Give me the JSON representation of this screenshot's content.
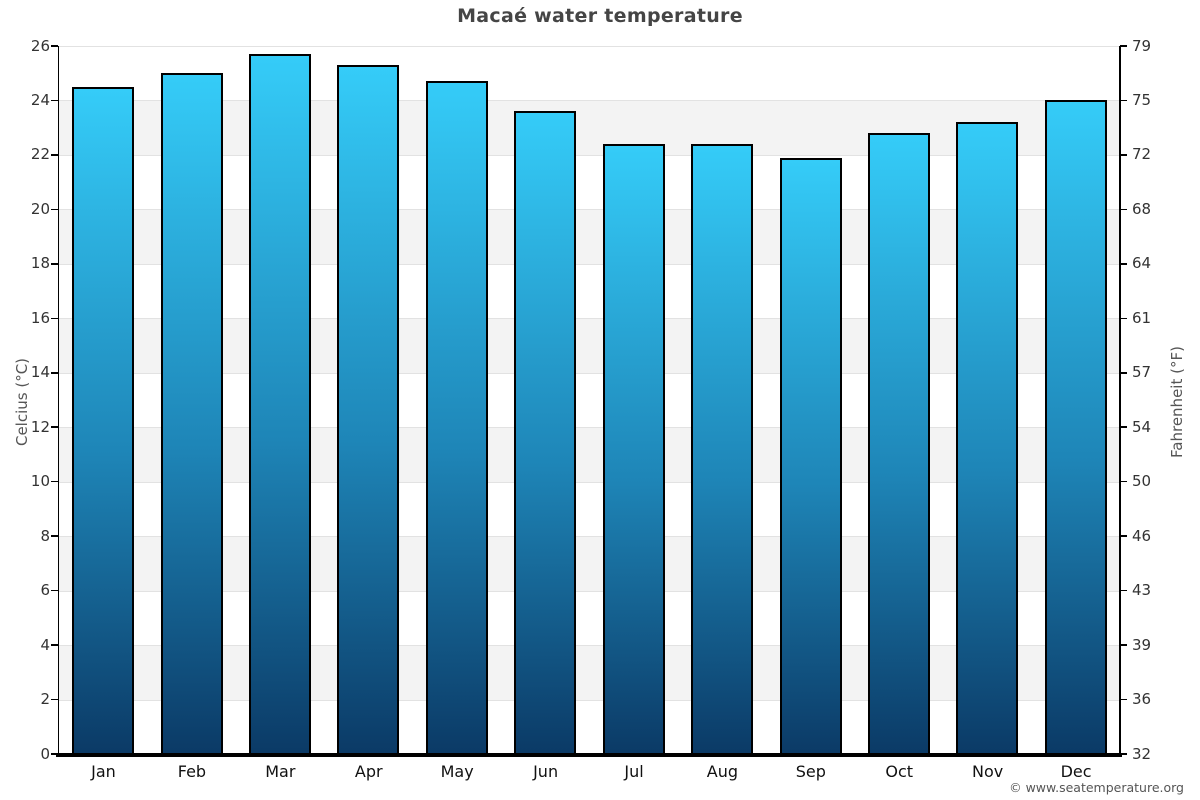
{
  "title": "Macaé water temperature",
  "axes": {
    "left_label": "Celcius (°C)",
    "right_label": "Fahrenheit (°F)"
  },
  "footer": {
    "copyright": "© www.seatemperature.org"
  },
  "colors": {
    "bar_top": "#35ccf8",
    "bar_mid": "#1e85b7",
    "bar_bottom": "#0b3a66",
    "bar_border": "#000000",
    "band_gray": "#f3f3f3",
    "band_white": "#ffffff",
    "gridline": "#e2e2e2",
    "title_text": "#454545",
    "tick_text": "#333333",
    "month_text": "#111111",
    "axis_title_text": "#555555"
  },
  "chart_data": {
    "type": "bar",
    "title": "Macaé water temperature",
    "categories": [
      "Jan",
      "Feb",
      "Mar",
      "Apr",
      "May",
      "Jun",
      "Jul",
      "Aug",
      "Sep",
      "Oct",
      "Nov",
      "Dec"
    ],
    "values": [
      24.5,
      25.0,
      25.7,
      25.3,
      24.7,
      23.6,
      22.4,
      22.4,
      21.9,
      22.8,
      23.2,
      24.0
    ],
    "xlabel": "",
    "ylabel": "Celcius (°C)",
    "ylabel_right": "Fahrenheit (°F)",
    "ylim": [
      0,
      26
    ],
    "celsius_ticks": [
      0,
      2,
      4,
      6,
      8,
      10,
      12,
      14,
      16,
      18,
      20,
      22,
      24,
      26
    ],
    "fahrenheit_ticks": [
      32,
      36,
      39,
      43,
      46,
      50,
      54,
      57,
      61,
      64,
      68,
      72,
      75,
      79
    ],
    "grid": "alternating horizontal bands every 2°C, light gray lines",
    "legend": "none"
  }
}
